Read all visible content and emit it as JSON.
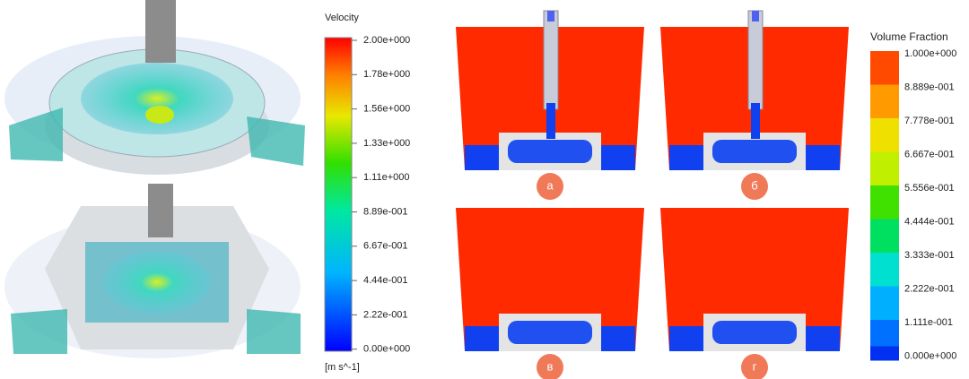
{
  "velocity": {
    "title": "Velocity",
    "labels": [
      "2.00e+000",
      "1.78e+000",
      "1.56e+000",
      "1.33e+000",
      "1.11e+000",
      "8.89e-001",
      "6.67e-001",
      "4.44e-001",
      "2.22e-001",
      "0.00e+000"
    ],
    "unit": "[m s^-1]"
  },
  "volume_fraction": {
    "title": "Volume Fraction",
    "labels": [
      "1.000e+000",
      "8.889e-001",
      "7.778e-001",
      "6.667e-001",
      "5.556e-001",
      "4.444e-001",
      "3.333e-001",
      "2.222e-001",
      "1.111e-001",
      "0.000e+000"
    ]
  },
  "panels": {
    "labels": [
      "а",
      "б",
      "в",
      "г"
    ]
  }
}
